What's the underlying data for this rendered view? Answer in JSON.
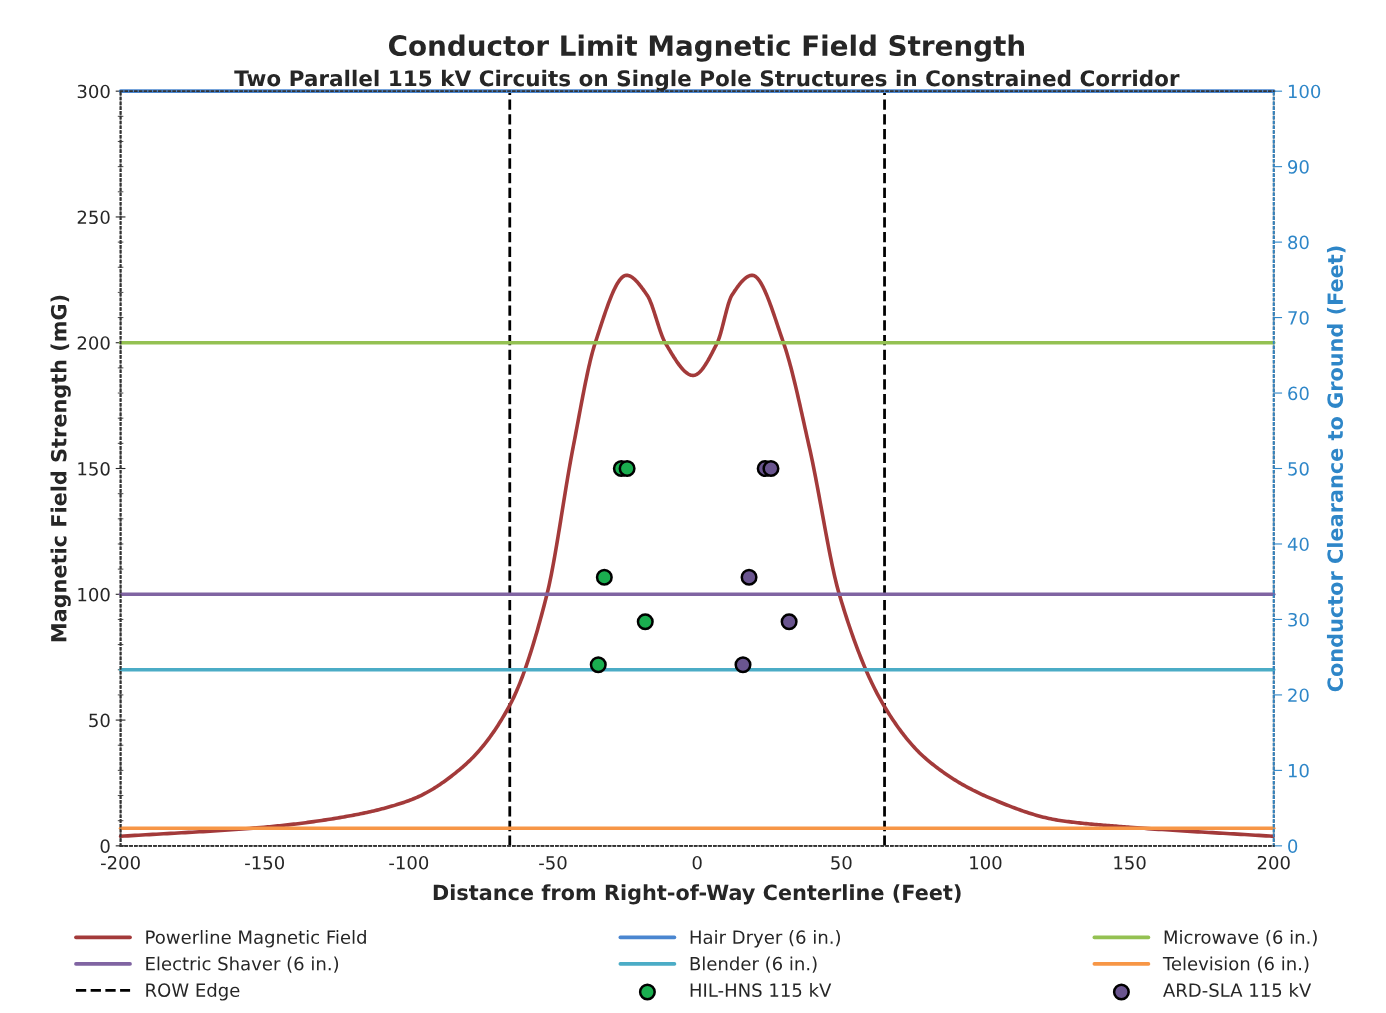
{
  "chart_data": {
    "type": "line",
    "title": "Conductor Limit Magnetic Field Strength",
    "subtitle": "Two Parallel 115 kV Circuits on Single Pole Structures in Constrained Corridor",
    "xlabel": "Distance from Right-of-Way Centerline (Feet)",
    "ylabel": "Magnetic Field Strength (mG)",
    "y2label": "Conductor Clearance to Ground (Feet)",
    "xlim": [
      -200,
      200
    ],
    "xticks": [
      -200,
      -150,
      -100,
      -50,
      0,
      50,
      100,
      150,
      200
    ],
    "ylim": [
      0,
      300
    ],
    "yticks": [
      0,
      50,
      100,
      150,
      200,
      250,
      300
    ],
    "y2lim": [
      0,
      100
    ],
    "y2ticks": [
      0,
      10,
      20,
      30,
      40,
      50,
      60,
      70,
      80,
      90,
      100
    ],
    "grid": false,
    "legend": "bottom",
    "series": [
      {
        "name": "Powerline Magnetic Field",
        "color": "#a33a3a",
        "x": [
          -200,
          -150.3,
          -122.6,
          -99.5,
          -81,
          -65,
          -52.1,
          -43.1,
          -35.4,
          -24.5,
          -17.4,
          -11,
          -1.4,
          6.9,
          12.1,
          19.1,
          30,
          39,
          49.3,
          64.7,
          79.6,
          100.4,
          125.8,
          150.1,
          199.8
        ],
        "values": [
          3.8,
          7.4,
          11.5,
          18.2,
          31.7,
          55.9,
          100,
          158,
          199.8,
          226.8,
          219,
          199.8,
          187,
          199.8,
          219,
          226.8,
          199.8,
          158,
          100,
          55.9,
          34.4,
          19.6,
          10.1,
          7.4,
          3.8
        ]
      },
      {
        "name": "Hair Dryer (6 in.)",
        "color": "#4a86d0",
        "x": [
          -200,
          200
        ],
        "values": [
          300,
          300
        ]
      },
      {
        "name": "Microwave (6 in.)",
        "color": "#94c152",
        "x": [
          -200,
          200
        ],
        "values": [
          200,
          200
        ]
      },
      {
        "name": "Electric Shaver (6 in.)",
        "color": "#8064a2",
        "x": [
          -200,
          200
        ],
        "values": [
          100,
          100
        ]
      },
      {
        "name": "Blender (6 in.)",
        "color": "#4bacc6",
        "x": [
          -200,
          200
        ],
        "values": [
          70,
          70
        ]
      },
      {
        "name": "Television (6 in.)",
        "color": "#f79646",
        "x": [
          -200,
          200
        ],
        "values": [
          7,
          7
        ]
      },
      {
        "name": "HIL-HNS 115 kV",
        "type": "scatter",
        "marker": "circle",
        "axis": "y2",
        "color": "#1aae4f",
        "x": [
          -26.3,
          -24.3,
          -32.2,
          -18,
          -34.3
        ],
        "values": [
          50,
          50,
          35.6,
          29.7,
          24
        ]
      },
      {
        "name": "ARD-SLA 115 kV",
        "type": "scatter",
        "marker": "circle",
        "axis": "y2",
        "color": "#6a558f",
        "x": [
          23.6,
          25.6,
          18,
          31.9,
          15.9
        ],
        "values": [
          50,
          50,
          35.6,
          29.7,
          24
        ]
      }
    ],
    "ref_lines": [
      {
        "axis": "x",
        "value": -65,
        "label": "ROW Edge",
        "color": "#000000",
        "line_style": "dashed"
      },
      {
        "axis": "x",
        "value": 65,
        "label": null,
        "color": "#000000",
        "line_style": "dashed"
      }
    ],
    "line_style": "solid"
  }
}
